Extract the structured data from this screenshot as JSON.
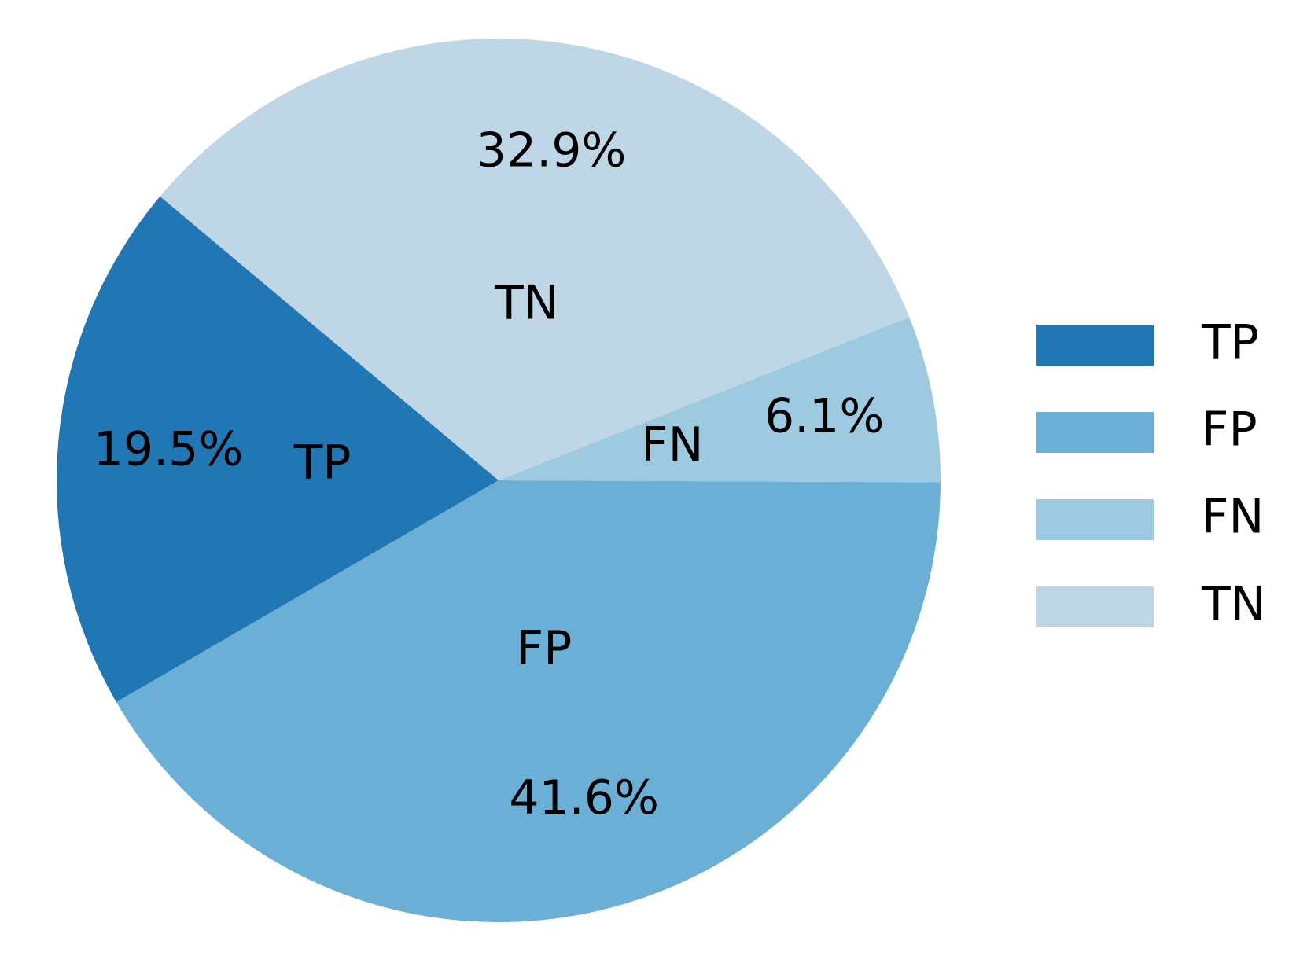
{
  "chart_data": {
    "type": "pie",
    "categories": [
      "TP",
      "FP",
      "FN",
      "TN"
    ],
    "values": [
      19.5,
      41.6,
      6.1,
      32.9
    ],
    "value_labels": [
      "19.5%",
      "41.6%",
      "6.1%",
      "32.9%"
    ],
    "colors": [
      "#2077b4",
      "#6baed6",
      "#9ecae1",
      "#bfd6e6"
    ],
    "legend": "right"
  }
}
